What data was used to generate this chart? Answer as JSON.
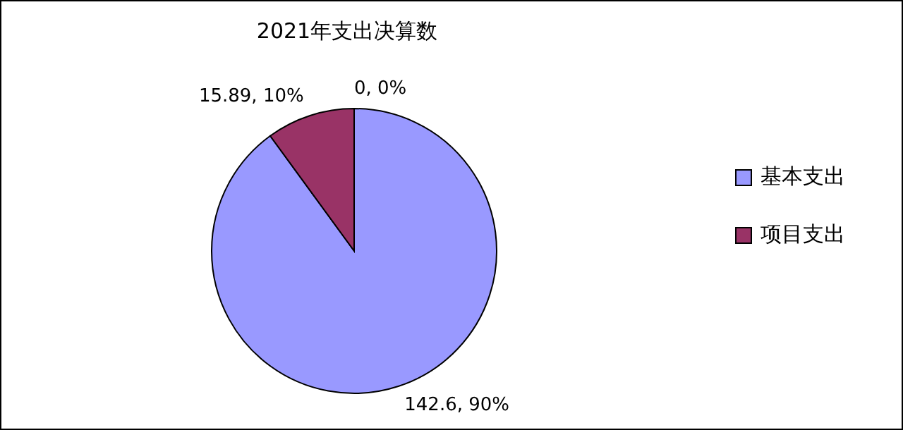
{
  "chart_data": {
    "type": "pie",
    "title": "2021年支出决算数",
    "categories": [
      "基本支出",
      "项目支出",
      null
    ],
    "values": [
      142.6,
      15.89,
      0
    ],
    "colors": [
      "#9999ff",
      "#993366",
      "#ffffcc"
    ],
    "value_labels": [
      "142.6, 90%",
      "15.89, 10%",
      "0, 0%"
    ],
    "legend": "right"
  }
}
